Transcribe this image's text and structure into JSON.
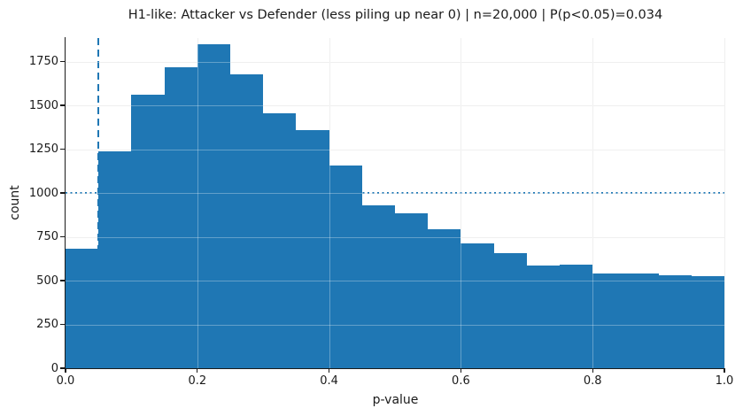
{
  "chart_data": {
    "type": "bar",
    "subtype": "histogram",
    "title": "H1-like: Attacker vs Defender (less piling up near 0) | n=20,000 | P(p<0.05)=0.034",
    "xlabel": "p-value",
    "ylabel": "count",
    "n_total": 20000,
    "bin_start": 0.0,
    "bin_width": 0.05,
    "counts": [
      680,
      1240,
      1560,
      1716,
      1852,
      1678,
      1455,
      1360,
      1158,
      930,
      886,
      795,
      715,
      655,
      585,
      592,
      542,
      541,
      532,
      528
    ],
    "xlim": [
      0.0,
      1.0
    ],
    "ylim": [
      0,
      1885
    ],
    "x_ticks": [
      0.0,
      0.2,
      0.4,
      0.6,
      0.8,
      1.0
    ],
    "x_tick_labels": [
      "0.0",
      "0.2",
      "0.4",
      "0.6",
      "0.8",
      "1.0"
    ],
    "y_ticks": [
      0,
      250,
      500,
      750,
      1000,
      1250,
      1500,
      1750
    ],
    "y_tick_labels": [
      "0",
      "250",
      "500",
      "750",
      "1000",
      "1250",
      "1500",
      "1750"
    ],
    "bar_color": "#1f77b4",
    "grid": true,
    "grid_color": "#e8e8e8",
    "legend": "none",
    "reference_lines": [
      {
        "type": "vline",
        "x": 0.05,
        "style": "dashed",
        "color": "#1f77b4"
      },
      {
        "type": "hline",
        "y": 1000,
        "style": "dotted",
        "color": "#1f77b4"
      }
    ]
  }
}
